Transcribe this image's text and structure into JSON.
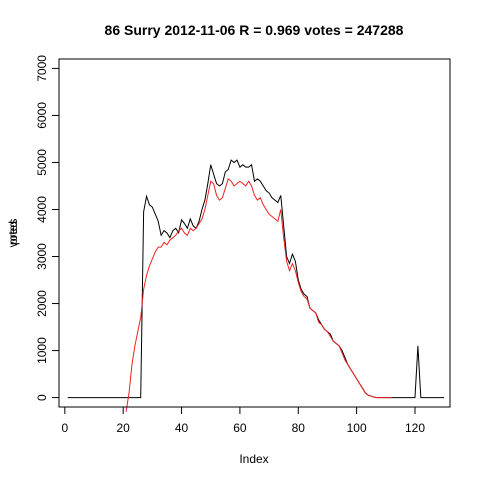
{
  "chart_data": {
    "type": "line",
    "title": "86 Surry 2012-11-06 R = 0.969 votes = 247288",
    "xlabel": "Index",
    "ylabel_overprint": [
      "votes",
      "pred"
    ],
    "xlim": [
      -2,
      132
    ],
    "ylim": [
      -200,
      7200
    ],
    "xticks": [
      0,
      20,
      40,
      60,
      80,
      100,
      120
    ],
    "yticks": [
      0,
      1000,
      2000,
      3000,
      4000,
      5000,
      6000,
      7000
    ],
    "grid": false,
    "legend": "none",
    "series": [
      {
        "color": "#000000",
        "x": [
          1,
          2,
          3,
          4,
          5,
          6,
          7,
          8,
          9,
          10,
          11,
          12,
          13,
          14,
          15,
          16,
          17,
          18,
          19,
          20,
          21,
          22,
          23,
          24,
          25,
          26,
          27,
          28,
          29,
          30,
          31,
          32,
          33,
          34,
          35,
          36,
          37,
          38,
          39,
          40,
          41,
          42,
          43,
          44,
          45,
          46,
          47,
          48,
          49,
          50,
          51,
          52,
          53,
          54,
          55,
          56,
          57,
          58,
          59,
          60,
          61,
          62,
          63,
          64,
          65,
          66,
          67,
          68,
          69,
          70,
          71,
          72,
          73,
          74,
          75,
          76,
          77,
          78,
          79,
          80,
          81,
          82,
          83,
          84,
          85,
          86,
          87,
          88,
          89,
          90,
          91,
          92,
          93,
          94,
          95,
          96,
          97,
          98,
          99,
          100,
          101,
          102,
          103,
          104,
          105,
          106,
          107,
          108,
          109,
          110,
          111,
          112,
          113,
          114,
          115,
          116,
          117,
          118,
          119,
          120,
          121,
          122,
          123,
          124,
          125,
          126,
          127,
          128,
          129,
          130
        ],
        "y": [
          0,
          0,
          0,
          0,
          0,
          0,
          0,
          0,
          0,
          0,
          0,
          0,
          0,
          0,
          0,
          0,
          0,
          0,
          0,
          0,
          0,
          0,
          0,
          0,
          0,
          0,
          3950,
          4280,
          4100,
          4050,
          3900,
          3750,
          3450,
          3550,
          3500,
          3400,
          3550,
          3600,
          3500,
          3780,
          3700,
          3600,
          3800,
          3650,
          3600,
          3750,
          4000,
          4200,
          4550,
          4950,
          4750,
          4550,
          4500,
          4550,
          4800,
          4850,
          5050,
          5000,
          5050,
          4900,
          4950,
          4900,
          4900,
          4950,
          4600,
          4650,
          4600,
          4500,
          4400,
          4350,
          4250,
          4200,
          4150,
          4300,
          3650,
          3000,
          2850,
          3050,
          2900,
          2500,
          2300,
          2200,
          2150,
          1900,
          1850,
          1800,
          1650,
          1550,
          1450,
          1400,
          1350,
          1200,
          1150,
          1100,
          1000,
          850,
          700,
          600,
          500,
          400,
          300,
          200,
          100,
          50,
          30,
          10,
          0,
          0,
          0,
          0,
          0,
          0,
          0,
          0,
          0,
          0,
          0,
          0,
          0,
          0,
          1100,
          0,
          0,
          0,
          0,
          0,
          0,
          0,
          0,
          0
        ]
      },
      {
        "color": "#ee2222",
        "x": [
          21,
          22,
          23,
          24,
          25,
          26,
          27,
          28,
          29,
          30,
          31,
          32,
          33,
          34,
          35,
          36,
          37,
          38,
          39,
          40,
          41,
          42,
          43,
          44,
          45,
          46,
          47,
          48,
          49,
          50,
          51,
          52,
          53,
          54,
          55,
          56,
          57,
          58,
          59,
          60,
          61,
          62,
          63,
          64,
          65,
          66,
          67,
          68,
          69,
          70,
          71,
          72,
          73,
          74,
          75,
          76,
          77,
          78,
          79,
          80,
          81,
          82,
          83,
          84,
          85,
          86,
          87,
          88,
          89,
          90,
          91,
          92,
          93,
          94,
          95,
          96,
          97,
          98,
          99,
          100,
          101,
          102,
          103,
          104,
          105,
          106,
          107,
          108,
          109,
          110,
          111,
          112
        ],
        "y": [
          -300,
          100,
          700,
          1100,
          1400,
          1700,
          2300,
          2600,
          2800,
          2950,
          3100,
          3200,
          3200,
          3300,
          3250,
          3350,
          3400,
          3450,
          3550,
          3600,
          3500,
          3450,
          3600,
          3550,
          3600,
          3700,
          3800,
          4000,
          4300,
          4600,
          4550,
          4300,
          4200,
          4250,
          4450,
          4650,
          4600,
          4500,
          4550,
          4600,
          4550,
          4500,
          4600,
          4500,
          4300,
          4200,
          4250,
          4100,
          4000,
          3900,
          3850,
          3800,
          3750,
          4000,
          3400,
          2900,
          2700,
          2850,
          2700,
          2450,
          2250,
          2150,
          2100,
          1900,
          1850,
          1800,
          1600,
          1550,
          1450,
          1400,
          1300,
          1200,
          1150,
          1100,
          950,
          800,
          700,
          600,
          500,
          400,
          300,
          200,
          100,
          50,
          30,
          10,
          0,
          0,
          0,
          0,
          0,
          0
        ]
      }
    ]
  }
}
